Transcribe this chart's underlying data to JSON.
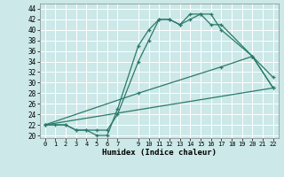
{
  "xlabel": "Humidex (Indice chaleur)",
  "bg_color": "#cce8e8",
  "grid_color": "#b8d8d8",
  "line_color": "#2a7a6a",
  "xlim": [
    -0.5,
    22.5
  ],
  "ylim": [
    19.5,
    45
  ],
  "xtick_vals": [
    0,
    1,
    2,
    3,
    4,
    5,
    6,
    7,
    9,
    10,
    11,
    12,
    13,
    14,
    15,
    16,
    17,
    18,
    19,
    20,
    21,
    22
  ],
  "ytick_vals": [
    20,
    22,
    24,
    26,
    28,
    30,
    32,
    34,
    36,
    38,
    40,
    42,
    44
  ],
  "series": [
    {
      "x": [
        0,
        1,
        2,
        3,
        4,
        5,
        6,
        7,
        9,
        10,
        11,
        12,
        13,
        14,
        15,
        16,
        17,
        20,
        22
      ],
      "y": [
        22,
        22,
        22,
        21,
        21,
        20,
        20,
        25,
        37,
        40,
        42,
        42,
        41,
        43,
        43,
        41,
        41,
        35,
        29
      ],
      "marker": true
    },
    {
      "x": [
        0,
        2,
        3,
        4,
        5,
        6,
        7,
        9,
        10,
        11,
        12,
        13,
        14,
        15,
        16,
        17,
        20,
        22
      ],
      "y": [
        22,
        22,
        21,
        21,
        21,
        21,
        24,
        34,
        38,
        42,
        42,
        41,
        42,
        43,
        43,
        40,
        35,
        31
      ],
      "marker": true
    },
    {
      "x": [
        0,
        9,
        17,
        20,
        22
      ],
      "y": [
        22,
        28,
        33,
        35,
        29
      ],
      "marker": true
    },
    {
      "x": [
        0,
        22
      ],
      "y": [
        22,
        29
      ],
      "marker": false
    }
  ]
}
